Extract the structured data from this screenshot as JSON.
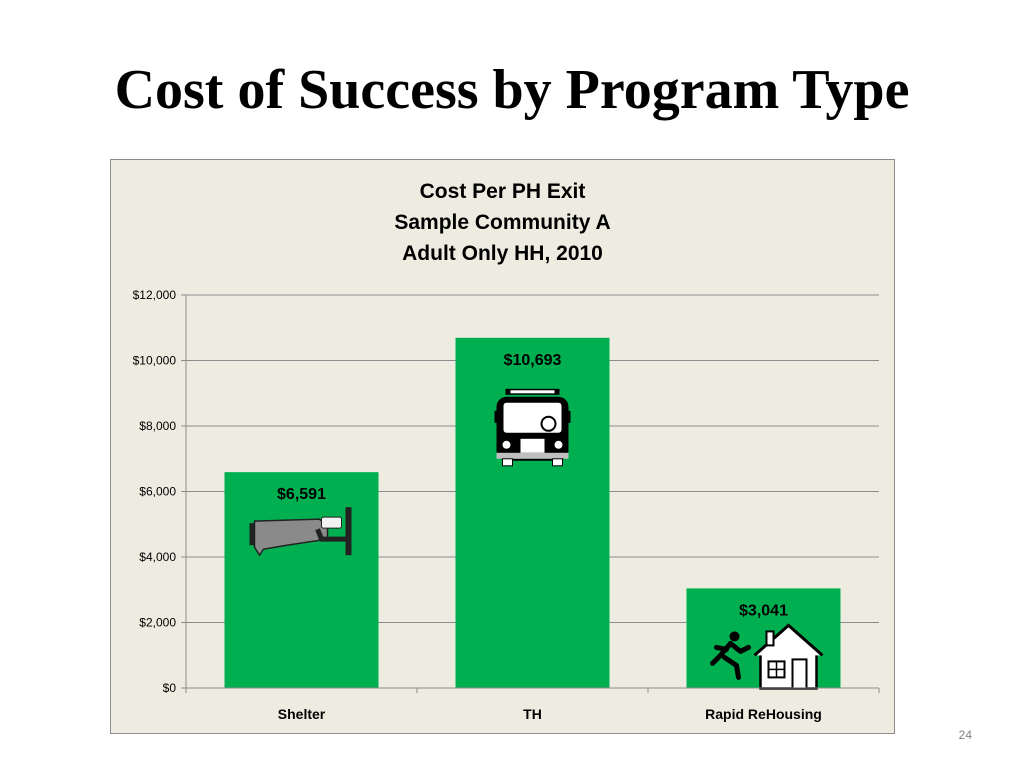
{
  "slide": {
    "title": "Cost of Success by Program Type",
    "page_number": "24"
  },
  "chart_data": {
    "type": "bar",
    "title_lines": [
      "Cost Per PH Exit",
      "Sample Community A",
      "Adult Only HH, 2010"
    ],
    "categories": [
      "Shelter",
      "TH",
      "Rapid ReHousing"
    ],
    "values": [
      6591,
      10693,
      3041
    ],
    "data_labels": [
      "$6,591",
      "$10,693",
      "$3,041"
    ],
    "icons": [
      "bed-icon",
      "bus-icon",
      "running-person-house-icon"
    ],
    "y_ticks": [
      0,
      2000,
      4000,
      6000,
      8000,
      10000,
      12000
    ],
    "y_tick_labels": [
      "$0",
      "$2,000",
      "$4,000",
      "$6,000",
      "$8,000",
      "$10,000",
      "$12,000"
    ],
    "ylim": [
      0,
      12000
    ],
    "grid": true,
    "legend": "none",
    "colors": {
      "bar": "#00b050",
      "background": "#eeece1",
      "grid": "#8c8c8c"
    }
  }
}
